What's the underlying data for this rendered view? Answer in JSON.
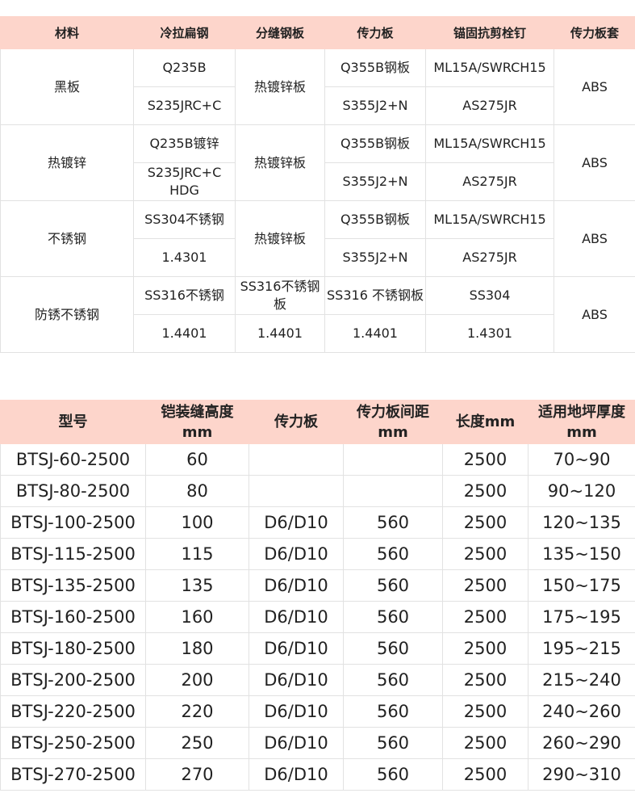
{
  "materials_table": {
    "headers": [
      "材料",
      "冷拉扁钢",
      "分缝钢板",
      "传力板",
      "锚固抗剪栓钉",
      "传力板套"
    ],
    "groups": [
      {
        "material": "黑板",
        "flat_steel": [
          "Q235B",
          "S235JRC+C"
        ],
        "joint_plate": "热镀锌板",
        "dowel_plate": [
          "Q355B钢板",
          "S355J2+N"
        ],
        "stud": [
          "ML15A/SWRCH15",
          "AS275JR"
        ],
        "sleeve": "ABS"
      },
      {
        "material": "热镀锌",
        "flat_steel": [
          "Q235B镀锌",
          "S235JRC+C HDG"
        ],
        "joint_plate": "热镀锌板",
        "dowel_plate": [
          "Q355B钢板",
          "S355J2+N"
        ],
        "stud": [
          "ML15A/SWRCH15",
          "AS275JR"
        ],
        "sleeve": "ABS"
      },
      {
        "material": "不锈钢",
        "flat_steel": [
          "SS304不锈钢",
          "1.4301"
        ],
        "joint_plate": "热镀锌板",
        "dowel_plate": [
          "Q355B钢板",
          "S355J2+N"
        ],
        "stud": [
          "ML15A/SWRCH15",
          "AS275JR"
        ],
        "sleeve": "ABS"
      },
      {
        "material": "防锈不锈钢",
        "flat_steel": [
          "SS316不锈钢",
          "1.4401"
        ],
        "joint_plate": [
          "SS316不锈钢板",
          "1.4401"
        ],
        "dowel_plate": [
          "SS316 不锈钢板",
          "1.4401"
        ],
        "stud": [
          "SS304",
          "1.4301"
        ],
        "sleeve": "ABS"
      }
    ]
  },
  "models_table": {
    "headers": [
      "型号",
      "铠装缝高度mm",
      "传力板",
      "传力板间距mm",
      "长度mm",
      "适用地坪厚度mm"
    ],
    "rows": [
      [
        "BTSJ-60-2500",
        "60",
        "",
        "",
        "2500",
        "70~90"
      ],
      [
        "BTSJ-80-2500",
        "80",
        "",
        "",
        "2500",
        "90~120"
      ],
      [
        "BTSJ-100-2500",
        "100",
        "D6/D10",
        "560",
        "2500",
        "120~135"
      ],
      [
        "BTSJ-115-2500",
        "115",
        "D6/D10",
        "560",
        "2500",
        "135~150"
      ],
      [
        "BTSJ-135-2500",
        "135",
        "D6/D10",
        "560",
        "2500",
        "150~175"
      ],
      [
        "BTSJ-160-2500",
        "160",
        "D6/D10",
        "560",
        "2500",
        "175~195"
      ],
      [
        "BTSJ-180-2500",
        "180",
        "D6/D10",
        "560",
        "2500",
        "195~215"
      ],
      [
        "BTSJ-200-2500",
        "200",
        "D6/D10",
        "560",
        "2500",
        "215~240"
      ],
      [
        "BTSJ-220-2500",
        "220",
        "D6/D10",
        "560",
        "2500",
        "240~260"
      ],
      [
        "BTSJ-250-2500",
        "250",
        "D6/D10",
        "560",
        "2500",
        "260~290"
      ],
      [
        "BTSJ-270-2500",
        "270",
        "D6/D10",
        "560",
        "2500",
        "290~310"
      ]
    ]
  }
}
